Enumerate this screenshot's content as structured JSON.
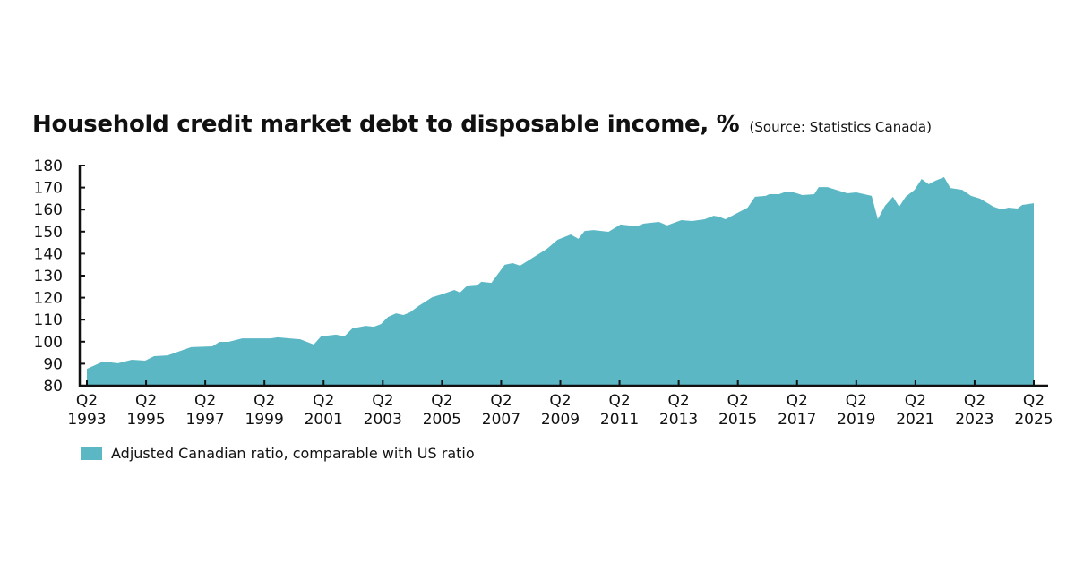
{
  "chart_data": {
    "type": "area",
    "title": "Household credit market debt to disposable income, %",
    "subtitle": "(Source: Statistics Canada)",
    "xlabel": "",
    "ylabel": "",
    "ylim": [
      80,
      180
    ],
    "xlim": [
      1993.25,
      2025.25
    ],
    "y_ticks": [
      80,
      90,
      100,
      110,
      120,
      130,
      140,
      150,
      160,
      170,
      180
    ],
    "x_ticks": [
      {
        "value": 1993.25,
        "q": "Q2",
        "year": "1993"
      },
      {
        "value": 1995.25,
        "q": "Q2",
        "year": "1995"
      },
      {
        "value": 1997.25,
        "q": "Q2",
        "year": "1997"
      },
      {
        "value": 1999.25,
        "q": "Q2",
        "year": "1999"
      },
      {
        "value": 2001.25,
        "q": "Q2",
        "year": "2001"
      },
      {
        "value": 2003.25,
        "q": "Q2",
        "year": "2003"
      },
      {
        "value": 2005.25,
        "q": "Q2",
        "year": "2005"
      },
      {
        "value": 2007.25,
        "q": "Q2",
        "year": "2007"
      },
      {
        "value": 2009.25,
        "q": "Q2",
        "year": "2009"
      },
      {
        "value": 2011.25,
        "q": "Q2",
        "year": "2011"
      },
      {
        "value": 2013.25,
        "q": "Q2",
        "year": "2013"
      },
      {
        "value": 2015.25,
        "q": "Q2",
        "year": "2015"
      },
      {
        "value": 2017.25,
        "q": "Q2",
        "year": "2017"
      },
      {
        "value": 2019.25,
        "q": "Q2",
        "year": "2019"
      },
      {
        "value": 2021.25,
        "q": "Q2",
        "year": "2021"
      },
      {
        "value": 2023.25,
        "q": "Q2",
        "year": "2023"
      },
      {
        "value": 2025.25,
        "q": "Q2",
        "year": "2025"
      }
    ],
    "grid": false,
    "legend_position": "bottom-left",
    "series": [
      {
        "name": "Adjusted Canadian ratio, comparable with US ratio",
        "color": "#5bb7c4",
        "x": [
          1993.25,
          1993.8,
          1994.3,
          1994.77,
          1995.22,
          1995.52,
          1995.98,
          1996.77,
          1997.49,
          1997.73,
          1998.04,
          1998.5,
          1999.1,
          1999.46,
          1999.7,
          2000.1,
          2000.46,
          2000.92,
          2001.16,
          2001.67,
          2001.95,
          2002.22,
          2002.67,
          2002.95,
          2003.19,
          2003.43,
          2003.7,
          2003.95,
          2004.16,
          2004.46,
          2004.92,
          2005.25,
          2005.67,
          2005.86,
          2006.07,
          2006.43,
          2006.58,
          2006.92,
          2007.37,
          2007.64,
          2007.89,
          2008.8,
          2009.16,
          2009.6,
          2009.86,
          2010.07,
          2010.37,
          2010.88,
          2011.28,
          2011.83,
          2012.07,
          2012.58,
          2012.86,
          2013.34,
          2013.7,
          2014.13,
          2014.43,
          2014.61,
          2014.83,
          2015.58,
          2015.83,
          2016.19,
          2016.31,
          2016.64,
          2016.89,
          2017.04,
          2017.43,
          2017.83,
          2017.98,
          2018.28,
          2018.95,
          2019.25,
          2019.77,
          2019.98,
          2020.22,
          2020.49,
          2020.7,
          2020.92,
          2021.22,
          2021.46,
          2021.7,
          2021.92,
          2022.22,
          2022.43,
          2022.83,
          2023.13,
          2023.43,
          2023.89,
          2024.16,
          2024.4,
          2024.7,
          2024.86,
          2025.25
        ],
        "values": [
          87.7,
          91,
          90.2,
          91.8,
          91.4,
          93.4,
          93.8,
          97.5,
          97.9,
          99.9,
          99.9,
          101.5,
          101.5,
          101.5,
          102,
          101.5,
          101.1,
          98.7,
          102.4,
          103.2,
          102.4,
          106,
          107.2,
          106.8,
          108,
          111.3,
          112.9,
          112.1,
          113.3,
          116.2,
          120.2,
          121.5,
          123.5,
          122.3,
          125.1,
          125.5,
          127.2,
          126.7,
          134.9,
          135.7,
          134.5,
          142.2,
          146.3,
          148.7,
          146.7,
          150.3,
          150.7,
          149.9,
          153.2,
          152.4,
          153.6,
          154.4,
          152.8,
          155.2,
          154.8,
          155.6,
          157.2,
          156.8,
          155.6,
          160.9,
          165.8,
          166.2,
          167,
          167,
          168.2,
          168.2,
          166.6,
          167,
          170.2,
          170.2,
          167.4,
          167.8,
          166.2,
          155.6,
          161.7,
          165.8,
          161.3,
          165.8,
          169,
          173.9,
          171.5,
          173.1,
          174.7,
          169.8,
          169,
          166.2,
          165,
          161.3,
          160.1,
          160.9,
          160.5,
          162.1,
          162.9
        ]
      }
    ]
  }
}
